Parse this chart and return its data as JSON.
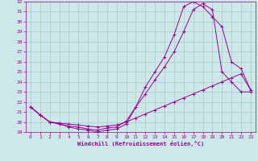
{
  "xlabel": "Windchill (Refroidissement éolien,°C)",
  "bg_color": "#cce8e8",
  "grid_color": "#aacccc",
  "line_color": "#990099",
  "xlim": [
    -0.5,
    23.5
  ],
  "ylim": [
    19,
    32
  ],
  "xticks": [
    0,
    1,
    2,
    3,
    4,
    5,
    6,
    7,
    8,
    9,
    10,
    11,
    12,
    13,
    14,
    15,
    16,
    17,
    18,
    19,
    20,
    21,
    22,
    23
  ],
  "yticks": [
    19,
    20,
    21,
    22,
    23,
    24,
    25,
    26,
    27,
    28,
    29,
    30,
    31,
    32
  ],
  "curve1_x": [
    0,
    1,
    2,
    3,
    4,
    5,
    6,
    7,
    8,
    9,
    10,
    11,
    12,
    13,
    14,
    15,
    16,
    17,
    18,
    19,
    20,
    21,
    22,
    23
  ],
  "curve1_y": [
    21.5,
    20.7,
    20.0,
    19.8,
    19.5,
    19.3,
    19.2,
    19.0,
    19.2,
    19.3,
    19.8,
    21.5,
    23.5,
    25.0,
    26.5,
    28.7,
    31.5,
    32.0,
    31.5,
    30.5,
    29.5,
    26.0,
    25.3,
    23.2
  ],
  "curve2_x": [
    0,
    1,
    2,
    3,
    4,
    5,
    6,
    7,
    8,
    9,
    10,
    11,
    12,
    13,
    14,
    15,
    16,
    17,
    18,
    19,
    20,
    21,
    22,
    23
  ],
  "curve2_y": [
    21.5,
    20.7,
    20.0,
    19.8,
    19.6,
    19.5,
    19.3,
    19.2,
    19.4,
    19.5,
    20.1,
    21.5,
    22.8,
    24.2,
    25.5,
    27.0,
    29.0,
    31.2,
    31.8,
    31.2,
    25.0,
    24.0,
    23.0,
    23.0
  ],
  "curve3_x": [
    0,
    1,
    2,
    3,
    4,
    5,
    6,
    7,
    8,
    9,
    10,
    11,
    12,
    13,
    14,
    15,
    16,
    17,
    18,
    19,
    20,
    21,
    22,
    23
  ],
  "curve3_y": [
    21.5,
    20.7,
    20.0,
    19.9,
    19.8,
    19.7,
    19.6,
    19.5,
    19.6,
    19.7,
    20.0,
    20.4,
    20.8,
    21.2,
    21.6,
    22.0,
    22.4,
    22.8,
    23.2,
    23.6,
    24.0,
    24.4,
    24.8,
    23.2
  ]
}
